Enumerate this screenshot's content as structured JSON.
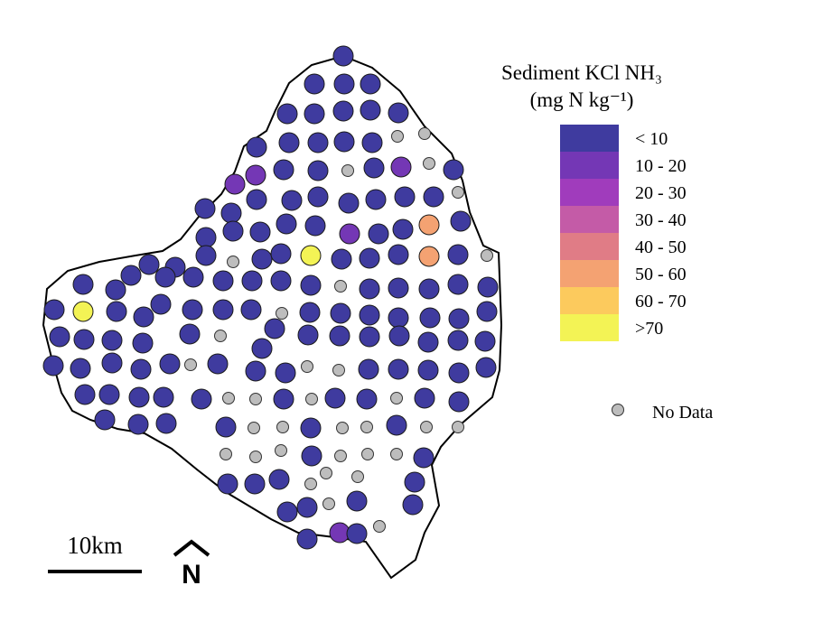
{
  "legend": {
    "title_line1": "Sediment KCl NH₃",
    "title_line2": "(mg N kg⁻¹)",
    "classes": [
      {
        "label": "< 10",
        "color": "#3f3b9f"
      },
      {
        "label": "10 - 20",
        "color": "#7437b5"
      },
      {
        "label": "20 - 30",
        "color": "#a03cbc"
      },
      {
        "label": "30 - 40",
        "color": "#c45ba7"
      },
      {
        "label": "40 - 50",
        "color": "#e07c86"
      },
      {
        "label": "50 - 60",
        "color": "#f4a272"
      },
      {
        "label": "60 - 70",
        "color": "#fcca5d"
      },
      {
        "label": ">70",
        "color": "#f3f355"
      }
    ],
    "no_data_label": "No Data",
    "no_data_color": "#bdbdbd"
  },
  "scale_bar": {
    "label": "10km"
  },
  "north_arrow": {
    "label": "N"
  },
  "colors": {
    "outline": "#000000",
    "point_stroke": "#1a1a1a"
  }
}
